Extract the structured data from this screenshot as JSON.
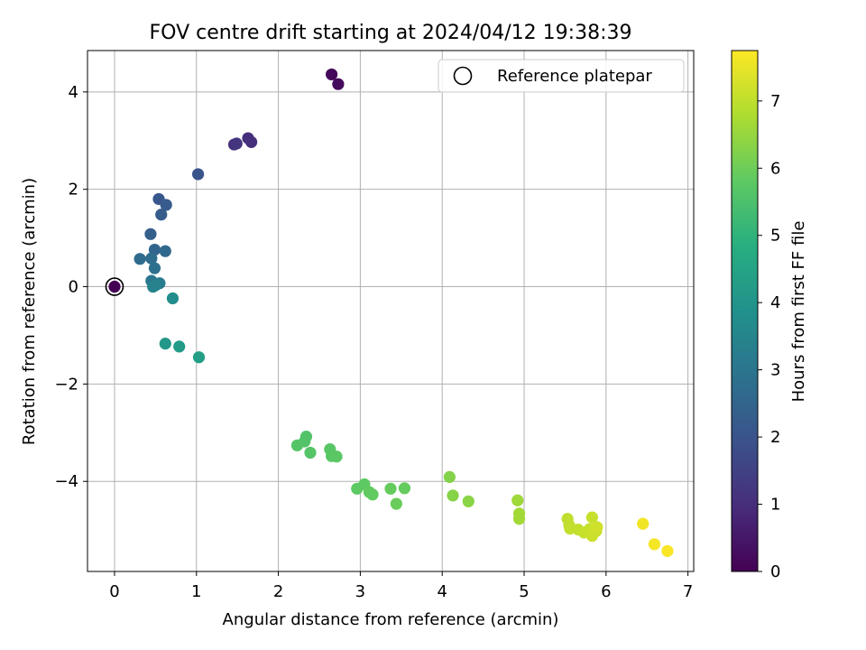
{
  "chart_data": {
    "type": "scatter",
    "title": "FOV centre drift starting at 2024/04/12 19:38:39",
    "xlabel": "Angular distance from reference (arcmin)",
    "ylabel": "Rotation from reference (arcmin)",
    "xlim": [
      -0.33,
      7.07
    ],
    "ylim": [
      -5.85,
      4.85
    ],
    "xticks": [
      0,
      1,
      2,
      3,
      4,
      5,
      6,
      7
    ],
    "yticks": [
      -4,
      -2,
      0,
      2,
      4
    ],
    "grid": true,
    "legend": {
      "placement": "top-right",
      "entries": [
        "Reference platepar"
      ]
    },
    "colorbar": {
      "label": "Hours from first FF file",
      "min": 0,
      "max": 7.75,
      "ticks": [
        0,
        1,
        2,
        3,
        4,
        5,
        6,
        7
      ],
      "colormap": "viridis"
    },
    "reference": {
      "x": 0,
      "y": 0
    },
    "points": [
      {
        "x": 0.0,
        "y": 0.0,
        "c": 0.0
      },
      {
        "x": 2.65,
        "y": 4.36,
        "c": 0.15
      },
      {
        "x": 2.73,
        "y": 4.16,
        "c": 0.25
      },
      {
        "x": 1.63,
        "y": 3.05,
        "c": 1.0
      },
      {
        "x": 1.67,
        "y": 2.97,
        "c": 1.05
      },
      {
        "x": 1.46,
        "y": 2.92,
        "c": 1.1
      },
      {
        "x": 1.49,
        "y": 2.94,
        "c": 1.15
      },
      {
        "x": 1.02,
        "y": 2.31,
        "c": 2.0
      },
      {
        "x": 0.54,
        "y": 1.8,
        "c": 2.1
      },
      {
        "x": 0.63,
        "y": 1.68,
        "c": 2.2
      },
      {
        "x": 0.57,
        "y": 1.48,
        "c": 2.25
      },
      {
        "x": 0.44,
        "y": 1.08,
        "c": 2.35
      },
      {
        "x": 0.49,
        "y": 0.76,
        "c": 2.5
      },
      {
        "x": 0.62,
        "y": 0.73,
        "c": 2.6
      },
      {
        "x": 0.31,
        "y": 0.57,
        "c": 2.7
      },
      {
        "x": 0.45,
        "y": 0.58,
        "c": 2.75
      },
      {
        "x": 0.49,
        "y": 0.38,
        "c": 2.85
      },
      {
        "x": 0.45,
        "y": 0.12,
        "c": 3.0
      },
      {
        "x": 0.55,
        "y": 0.07,
        "c": 3.2
      },
      {
        "x": 0.5,
        "y": 0.03,
        "c": 3.35
      },
      {
        "x": 0.47,
        "y": 0.0,
        "c": 3.45
      },
      {
        "x": 0.71,
        "y": -0.24,
        "c": 3.75
      },
      {
        "x": 0.62,
        "y": -1.17,
        "c": 4.1
      },
      {
        "x": 0.79,
        "y": -1.23,
        "c": 4.2
      },
      {
        "x": 1.03,
        "y": -1.45,
        "c": 4.3
      },
      {
        "x": 2.34,
        "y": -3.08,
        "c": 5.6
      },
      {
        "x": 2.32,
        "y": -3.18,
        "c": 5.6
      },
      {
        "x": 2.23,
        "y": -3.26,
        "c": 5.65
      },
      {
        "x": 2.39,
        "y": -3.41,
        "c": 5.65
      },
      {
        "x": 2.63,
        "y": -3.34,
        "c": 5.7
      },
      {
        "x": 2.65,
        "y": -3.48,
        "c": 5.7
      },
      {
        "x": 2.71,
        "y": -3.49,
        "c": 5.75
      },
      {
        "x": 2.96,
        "y": -4.15,
        "c": 5.8
      },
      {
        "x": 3.05,
        "y": -4.06,
        "c": 5.8
      },
      {
        "x": 3.11,
        "y": -4.22,
        "c": 5.85
      },
      {
        "x": 3.15,
        "y": -4.27,
        "c": 5.85
      },
      {
        "x": 3.37,
        "y": -4.15,
        "c": 5.9
      },
      {
        "x": 3.54,
        "y": -4.14,
        "c": 5.9
      },
      {
        "x": 3.44,
        "y": -4.46,
        "c": 5.95
      },
      {
        "x": 4.09,
        "y": -3.91,
        "c": 6.25
      },
      {
        "x": 4.13,
        "y": -4.29,
        "c": 6.3
      },
      {
        "x": 4.32,
        "y": -4.41,
        "c": 6.35
      },
      {
        "x": 4.92,
        "y": -4.39,
        "c": 6.6
      },
      {
        "x": 4.94,
        "y": -4.66,
        "c": 6.65
      },
      {
        "x": 4.94,
        "y": -4.77,
        "c": 6.65
      },
      {
        "x": 5.53,
        "y": -4.77,
        "c": 7.0
      },
      {
        "x": 5.55,
        "y": -4.9,
        "c": 7.0
      },
      {
        "x": 5.56,
        "y": -4.97,
        "c": 7.05
      },
      {
        "x": 5.66,
        "y": -4.99,
        "c": 7.05
      },
      {
        "x": 5.73,
        "y": -5.05,
        "c": 7.1
      },
      {
        "x": 5.8,
        "y": -4.98,
        "c": 7.1
      },
      {
        "x": 5.83,
        "y": -4.74,
        "c": 7.1
      },
      {
        "x": 5.83,
        "y": -5.12,
        "c": 7.15
      },
      {
        "x": 5.88,
        "y": -5.02,
        "c": 7.15
      },
      {
        "x": 5.89,
        "y": -4.94,
        "c": 7.2
      },
      {
        "x": 6.45,
        "y": -4.87,
        "c": 7.6
      },
      {
        "x": 6.59,
        "y": -5.29,
        "c": 7.65
      },
      {
        "x": 6.75,
        "y": -5.43,
        "c": 7.7
      }
    ]
  }
}
